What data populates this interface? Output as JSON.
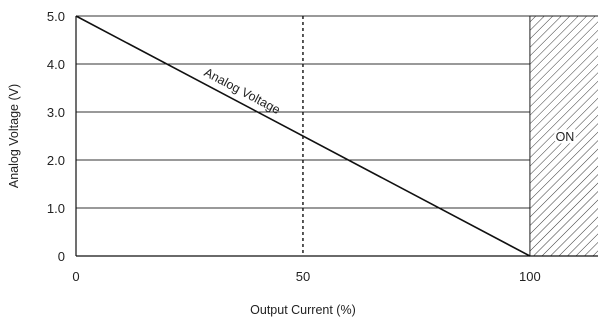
{
  "chart_data": {
    "type": "line",
    "xlabel": "Output Current (%)",
    "ylabel": "Analog Voltage (V)",
    "xlim": [
      0,
      115
    ],
    "ylim": [
      0,
      5.0
    ],
    "x_ticks": [
      "0",
      "50",
      "100"
    ],
    "x_tick_values": [
      0,
      50,
      100
    ],
    "y_ticks": [
      "0",
      "1.0",
      "2.0",
      "3.0",
      "4.0",
      "5.0"
    ],
    "y_tick_values": [
      0,
      1,
      2,
      3,
      4,
      5
    ],
    "grid": "horizontal",
    "series": [
      {
        "name": "Analog Voltage",
        "x": [
          0,
          100
        ],
        "y": [
          5.0,
          0
        ]
      }
    ],
    "annotations": {
      "series_label": "Analog Voltage",
      "reference_line_x": 50,
      "on_region": {
        "x_from": 100,
        "x_to": 115,
        "label": "ON"
      }
    },
    "colors": {
      "line": "#111111",
      "grid": "#333333"
    }
  }
}
